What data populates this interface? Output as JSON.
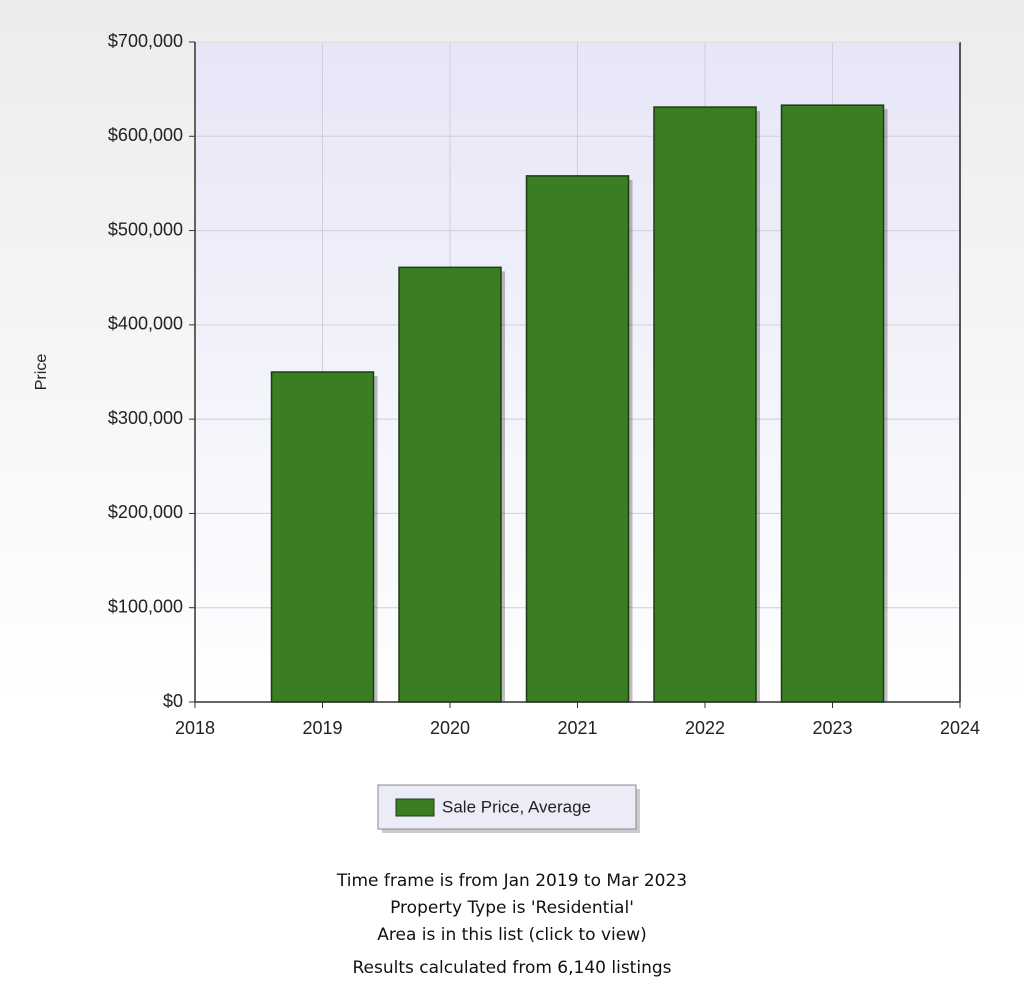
{
  "chart_data": {
    "type": "bar",
    "y_label": "Price",
    "x": [
      2019,
      2020,
      2021,
      2022,
      2023
    ],
    "series": [
      {
        "name": "Sale Price, Average",
        "color": "#3a7d22",
        "values": [
          350000,
          461000,
          558000,
          631000,
          633000
        ]
      }
    ],
    "xlim": [
      2018,
      2024
    ],
    "xticks": [
      2018,
      2019,
      2020,
      2021,
      2022,
      2023,
      2024
    ],
    "ylim": [
      0,
      700000
    ],
    "yticks": [
      {
        "value": 0,
        "label": "$0"
      },
      {
        "value": 100000,
        "label": "$100,000"
      },
      {
        "value": 200000,
        "label": "$200,000"
      },
      {
        "value": 300000,
        "label": "$300,000"
      },
      {
        "value": 400000,
        "label": "$400,000"
      },
      {
        "value": 500000,
        "label": "$500,000"
      },
      {
        "value": 600000,
        "label": "$600,000"
      },
      {
        "value": 700000,
        "label": "$700,000"
      }
    ],
    "grid": true,
    "legend": "bottom"
  },
  "notes": [
    "Time frame is from Jan 2019 to Mar 2023",
    "Property Type is 'Residential'",
    "Area is in this list (click to view)",
    "Results calculated from 6,140 listings"
  ]
}
